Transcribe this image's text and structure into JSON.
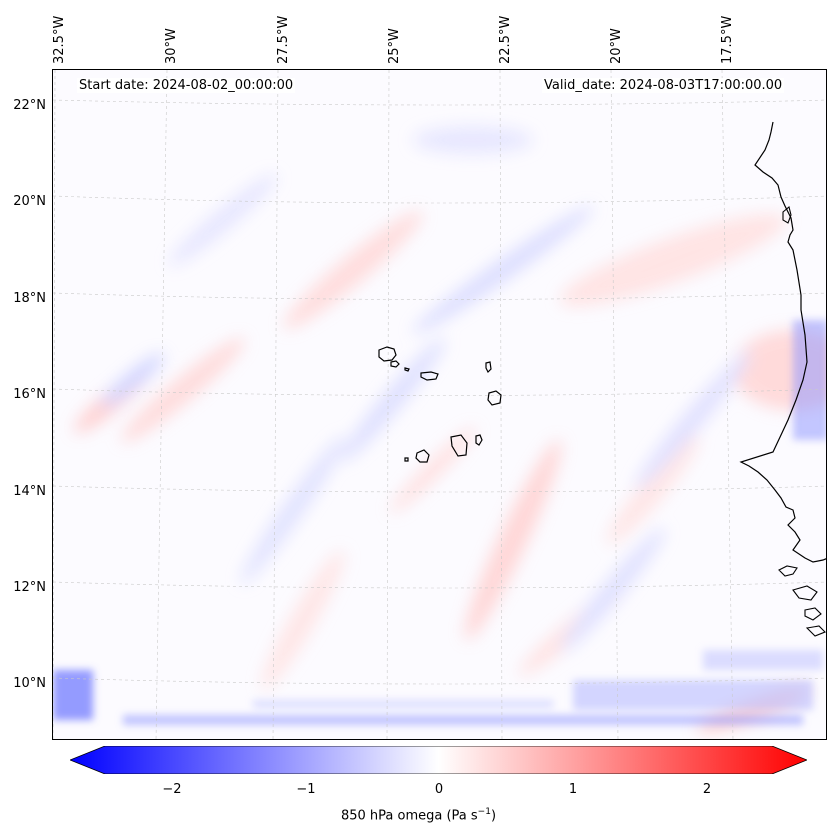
{
  "map": {
    "start_date": "Start date: 2024-08-02_00:00:00",
    "valid_date": "Valid_date: 2024-08-03T17:00:00.00",
    "longitude_labels": [
      "32.5°W",
      "30°W",
      "27.5°W",
      "25°W",
      "22.5°W",
      "20°W",
      "17.5°W"
    ],
    "latitude_labels": [
      "22°N",
      "20°N",
      "18°N",
      "16°N",
      "14°N",
      "12°N",
      "10°N"
    ],
    "features": [
      "Cape Verde islands",
      "West African coastline"
    ]
  },
  "colorbar": {
    "ticks": [
      "−2",
      "−1",
      "0",
      "1",
      "2"
    ],
    "tick_values": [
      -2,
      -1,
      0,
      1,
      2
    ],
    "range": [
      -2.6,
      2.6
    ],
    "label_main": "850 hPa omega (Pa s",
    "label_sup": "−1",
    "label_close": ")",
    "colors": {
      "neg": "#0000ff",
      "mid": "#ffffff",
      "pos": "#ff0000"
    }
  }
}
